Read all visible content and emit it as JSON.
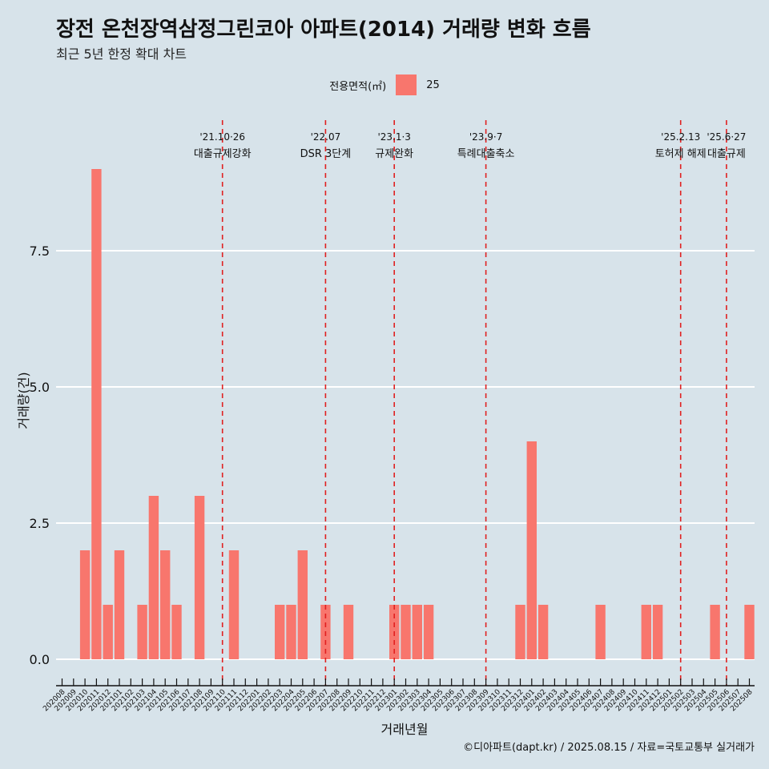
{
  "title": "장전 온천장역삼정그린코아 아파트(2014) 거래량 변화 흐름",
  "subtitle": "최근 5년 한정 확대 차트",
  "legend": {
    "title": "전용면적(㎡)",
    "label": "25",
    "color": "#f8766d"
  },
  "caption": "©디아파트(dapt.kr) / 2025.08.15 / 자료=국토교통부 실거래가",
  "chart_data": {
    "type": "bar",
    "xlabel": "거래년월",
    "ylabel": "거래량(건)",
    "ylim": [
      0,
      9
    ],
    "yticks": [
      0.0,
      2.5,
      5.0,
      7.5
    ],
    "ytick_labels": [
      "0.0",
      "2.5",
      "5.0",
      "7.5"
    ],
    "grid": true,
    "legend_position": "top",
    "series_color": "#f8766d",
    "categories": [
      "202008",
      "202009",
      "202010",
      "202011",
      "202012",
      "202101",
      "202102",
      "202103",
      "202104",
      "202105",
      "202106",
      "202107",
      "202108",
      "202109",
      "202110",
      "202111",
      "202112",
      "202201",
      "202202",
      "202203",
      "202204",
      "202205",
      "202206",
      "202207",
      "202208",
      "202209",
      "202210",
      "202211",
      "202212",
      "202301",
      "202302",
      "202303",
      "202304",
      "202305",
      "202306",
      "202307",
      "202308",
      "202309",
      "202310",
      "202311",
      "202312",
      "202401",
      "202402",
      "202403",
      "202404",
      "202405",
      "202406",
      "202407",
      "202408",
      "202409",
      "202410",
      "202411",
      "202412",
      "202501",
      "202502",
      "202503",
      "202504",
      "202505",
      "202506",
      "202507",
      "202508"
    ],
    "values": [
      0,
      0,
      2,
      9,
      1,
      2,
      0,
      1,
      3,
      2,
      1,
      0,
      3,
      0,
      0,
      2,
      0,
      0,
      0,
      1,
      1,
      2,
      0,
      1,
      0,
      1,
      0,
      0,
      0,
      1,
      1,
      1,
      1,
      0,
      0,
      0,
      0,
      0,
      0,
      0,
      1,
      4,
      1,
      0,
      0,
      0,
      0,
      1,
      0,
      0,
      0,
      1,
      1,
      0,
      0,
      0,
      0,
      1,
      0,
      0,
      1
    ],
    "annotations": [
      {
        "x": "202110",
        "date": "'21.10·26",
        "label": "대출규제강화"
      },
      {
        "x": "202207",
        "date": "'22.07",
        "label": "DSR 3단계"
      },
      {
        "x": "202301",
        "date": "'23.1·3",
        "label": "규제완화"
      },
      {
        "x": "202309",
        "date": "'23.9·7",
        "label": "특례대출축소"
      },
      {
        "x": "202502",
        "date": "'25.2.13",
        "label": "토허제 해제"
      },
      {
        "x": "202506",
        "date": "'25.6·27",
        "label": "대출규제"
      }
    ]
  }
}
